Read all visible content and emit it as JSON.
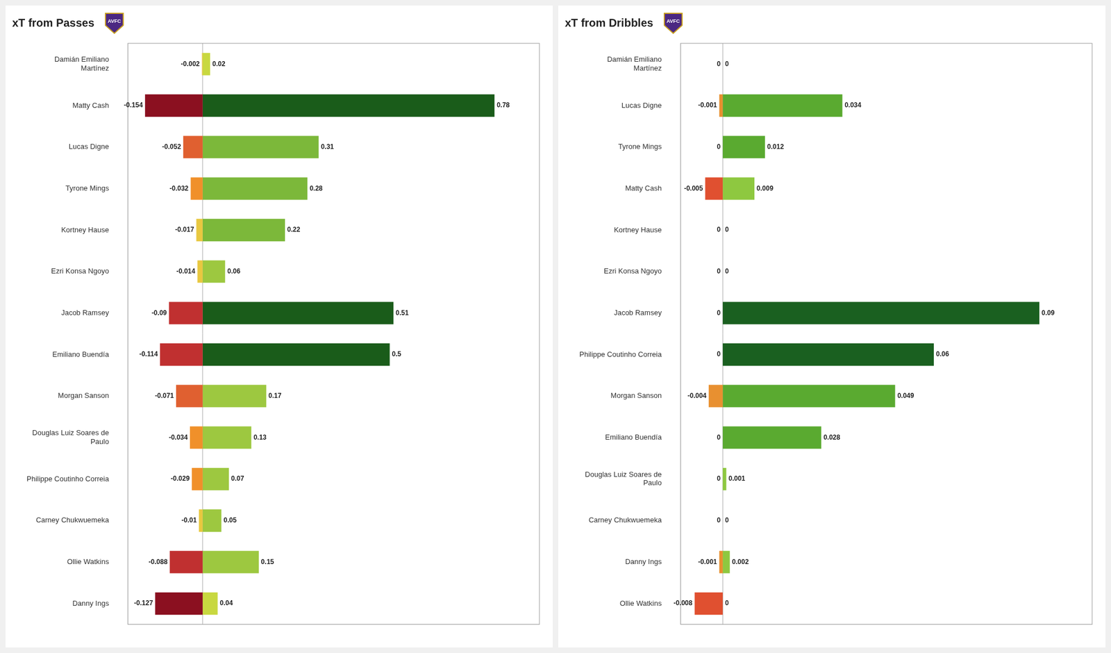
{
  "chart_data": [
    {
      "type": "bar",
      "title": "xT from Passes",
      "orientation": "horizontal",
      "categories": [
        "Damián Emiliano\nMartínez",
        "Matty Cash",
        "Lucas Digne",
        "Tyrone Mings",
        "Kortney Hause",
        "Ezri Konsa Ngoyo",
        "Jacob Ramsey",
        "Emiliano Buendía",
        "Morgan Sanson",
        "Douglas Luiz Soares de\nPaulo",
        "Philippe Coutinho Correia",
        "Carney Chukwuemeka",
        "Ollie Watkins",
        "Danny Ings"
      ],
      "series": [
        {
          "values": [
            -0.002,
            -0.154,
            -0.052,
            -0.032,
            -0.017,
            -0.014,
            -0.09,
            -0.114,
            -0.071,
            -0.034,
            -0.029,
            -0.01,
            -0.088,
            -0.127
          ],
          "colors": [
            "#E8C840",
            "#8B1020",
            "#E06030",
            "#F0902A",
            "#E8C840",
            "#E8C840",
            "#C03030",
            "#C03030",
            "#E06030",
            "#F0902A",
            "#F0902A",
            "#E8C840",
            "#C03030",
            "#8B1020"
          ]
        },
        {
          "values": [
            0.02,
            0.78,
            0.31,
            0.28,
            0.22,
            0.06,
            0.51,
            0.5,
            0.17,
            0.13,
            0.07,
            0.05,
            0.15,
            0.04
          ],
          "colors": [
            "#C8D840",
            "#1A5C1A",
            "#7CB83A",
            "#7CB83A",
            "#7CB83A",
            "#9DC840",
            "#1A5C1A",
            "#1A5C1A",
            "#9DC840",
            "#9DC840",
            "#9DC840",
            "#9DC840",
            "#9DC840",
            "#C8D840"
          ]
        }
      ],
      "xlim": [
        -0.2,
        0.9
      ],
      "grid": false,
      "tick_labels": "y",
      "data_labels": true,
      "annotations": [
        "AVFC"
      ]
    },
    {
      "type": "bar",
      "title": "xT from Dribbles",
      "orientation": "horizontal",
      "categories": [
        "Damián Emiliano\nMartínez",
        "Lucas Digne",
        "Tyrone Mings",
        "Matty Cash",
        "Kortney Hause",
        "Ezri Konsa Ngoyo",
        "Jacob Ramsey",
        "Philippe Coutinho Correia",
        "Morgan Sanson",
        "Emiliano Buendía",
        "Douglas Luiz Soares de\nPaulo",
        "Carney Chukwuemeka",
        "Danny Ings",
        "Ollie Watkins"
      ],
      "series": [
        {
          "values": [
            0,
            -0.001,
            0,
            -0.005,
            0,
            0,
            0,
            0,
            -0.004,
            0,
            0,
            0,
            -0.001,
            -0.008
          ],
          "colors": [
            null,
            "#E89030",
            null,
            "#E05030",
            null,
            null,
            null,
            null,
            "#E89030",
            null,
            null,
            null,
            "#E89030",
            "#E05030"
          ]
        },
        {
          "values": [
            0,
            0.034,
            0.012,
            0.009,
            0,
            0,
            0.09,
            0.06,
            0.049,
            0.028,
            0.001,
            0,
            0.002,
            0
          ],
          "colors": [
            null,
            "#5AAA30",
            "#5AAA30",
            "#8EC840",
            null,
            null,
            "#1A6020",
            "#1A6020",
            "#5AAA30",
            "#5AAA30",
            "#8EC840",
            null,
            "#8EC840",
            null
          ]
        }
      ],
      "xlim": [
        -0.012,
        0.105
      ],
      "grid": false,
      "tick_labels": "y",
      "data_labels": true,
      "annotations": [
        "AVFC"
      ]
    }
  ]
}
